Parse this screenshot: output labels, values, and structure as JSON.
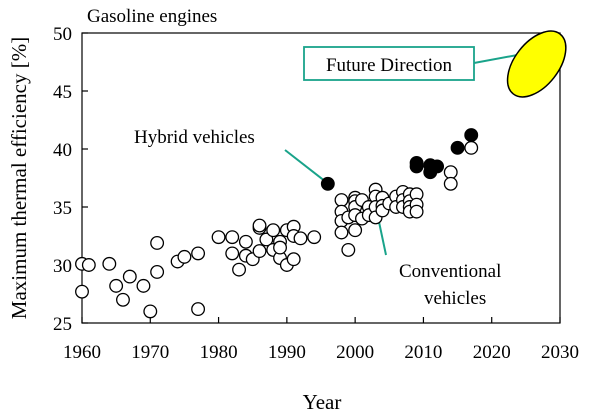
{
  "chart_data": {
    "type": "scatter",
    "title": "Gasoline engines",
    "xlabel": "Year",
    "ylabel": "Maximum thermal efficiency [%]",
    "xlim": [
      1960,
      2030
    ],
    "ylim": [
      25,
      50
    ],
    "xticks": [
      "1960",
      "1970",
      "1980",
      "1990",
      "2000",
      "2010",
      "2020",
      "2030"
    ],
    "yticks": [
      "25",
      "30",
      "35",
      "40",
      "45",
      "50"
    ],
    "grid": false,
    "series": [
      {
        "name": "Conventional vehicles",
        "marker": "open-circle",
        "points": [
          [
            1960,
            30.1
          ],
          [
            1960,
            27.7
          ],
          [
            1961,
            30.0
          ],
          [
            1964,
            30.1
          ],
          [
            1965,
            28.2
          ],
          [
            1966,
            27.0
          ],
          [
            1967,
            29.0
          ],
          [
            1969,
            28.2
          ],
          [
            1970,
            26.0
          ],
          [
            1971,
            29.4
          ],
          [
            1971,
            31.9
          ],
          [
            1974,
            30.3
          ],
          [
            1975,
            30.7
          ],
          [
            1977,
            26.2
          ],
          [
            1977,
            31.0
          ],
          [
            1980,
            32.4
          ],
          [
            1982,
            32.4
          ],
          [
            1982,
            31.0
          ],
          [
            1983,
            29.6
          ],
          [
            1984,
            30.8
          ],
          [
            1984,
            32.0
          ],
          [
            1985,
            30.5
          ],
          [
            1986,
            31.2
          ],
          [
            1986,
            33.2
          ],
          [
            1986,
            33.4
          ],
          [
            1987,
            32.2
          ],
          [
            1988,
            31.3
          ],
          [
            1988,
            33.0
          ],
          [
            1989,
            32.0
          ],
          [
            1989,
            30.6
          ],
          [
            1989,
            31.5
          ],
          [
            1990,
            33.0
          ],
          [
            1990,
            30.0
          ],
          [
            1991,
            33.3
          ],
          [
            1991,
            32.5
          ],
          [
            1991,
            30.5
          ],
          [
            1992,
            32.3
          ],
          [
            1994,
            32.4
          ],
          [
            1998,
            35.6
          ],
          [
            1998,
            34.6
          ],
          [
            1998,
            33.8
          ],
          [
            1998,
            32.8
          ],
          [
            1999,
            34.1
          ],
          [
            1999,
            31.3
          ],
          [
            2000,
            35.8
          ],
          [
            2000,
            35.5
          ],
          [
            2000,
            35.0
          ],
          [
            2000,
            34.3
          ],
          [
            2000,
            33.0
          ],
          [
            2001,
            35.6
          ],
          [
            2001,
            34.0
          ],
          [
            2002,
            35.0
          ],
          [
            2002,
            34.3
          ],
          [
            2003,
            36.5
          ],
          [
            2003,
            35.9
          ],
          [
            2003,
            35.0
          ],
          [
            2003,
            34.1
          ],
          [
            2004,
            35.8
          ],
          [
            2004,
            35.1
          ],
          [
            2004,
            34.7
          ],
          [
            2005,
            35.3
          ],
          [
            2006,
            35.9
          ],
          [
            2006,
            35.0
          ],
          [
            2007,
            36.3
          ],
          [
            2007,
            35.6
          ],
          [
            2007,
            35.0
          ],
          [
            2008,
            36.1
          ],
          [
            2008,
            35.5
          ],
          [
            2008,
            35.0
          ],
          [
            2008,
            34.6
          ],
          [
            2009,
            36.1
          ],
          [
            2009,
            35.2
          ],
          [
            2009,
            34.6
          ],
          [
            2014,
            38.0
          ],
          [
            2014,
            37.0
          ],
          [
            2017,
            40.1
          ]
        ]
      },
      {
        "name": "Hybrid vehicles",
        "marker": "filled-circle",
        "points": [
          [
            1996,
            37.0
          ],
          [
            2009,
            38.8
          ],
          [
            2009,
            38.5
          ],
          [
            2011,
            38.6
          ],
          [
            2011,
            38.0
          ],
          [
            2012,
            38.5
          ],
          [
            2015,
            40.1
          ],
          [
            2017,
            41.2
          ]
        ]
      }
    ],
    "annotations": [
      {
        "label": "Hybrid vehicles",
        "points_to": [
          1996,
          37.0
        ]
      },
      {
        "label_lines": [
          "Conventional",
          "vehicles"
        ],
        "points_to": [
          2003,
          34.3
        ]
      },
      {
        "label": "Future Direction",
        "points_to": [
          2026,
          47.5
        ],
        "shape": "ellipse",
        "fill": "#ffff00"
      }
    ]
  },
  "colors": {
    "hybrid": "#000000",
    "conventional_fill": "#ffffff",
    "future_ellipse": "#ffff00",
    "leader_line": "#19a38a",
    "box_border": "#19a38a"
  }
}
